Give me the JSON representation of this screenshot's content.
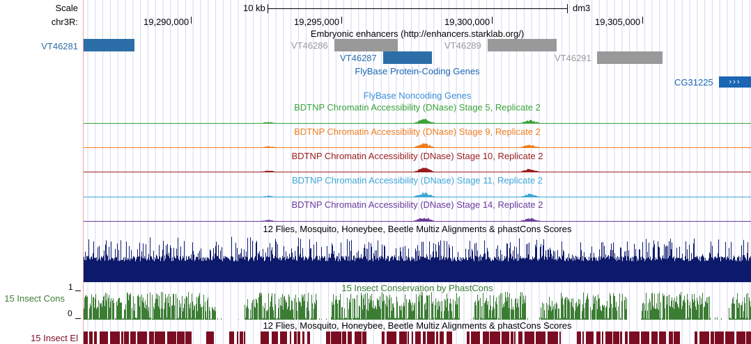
{
  "ruler": {
    "scale_label": "Scale",
    "chrom_label": "chr3R:",
    "scale_bar_text": "10 kb",
    "assembly": "dm3",
    "positions": [
      "19,290,000",
      "19,295,000",
      "19,300,000",
      "19,305,000"
    ]
  },
  "enhancers": {
    "title": "Embryonic enhancers (http://enhancers.starklab.org/)",
    "left_label": "VT46281",
    "items": [
      {
        "label": "VT46286",
        "color": "#999999"
      },
      {
        "label": "VT46287",
        "color": "#2b6ea8"
      },
      {
        "label": "VT46289",
        "color": "#999999"
      },
      {
        "label": "VT46291",
        "color": "#999999"
      }
    ]
  },
  "flybase_coding": {
    "title": "FlyBase Protein-Coding Genes",
    "gene": "CG31225",
    "strand_glyph": "›››",
    "color": "#1a66b3"
  },
  "flybase_noncoding": {
    "title": "FlyBase Noncoding Genes",
    "color": "#3c8fd9"
  },
  "dnase_tracks": [
    {
      "title": "BDTNP Chromatin Accessibility (DNase) Stage 5, Replicate 2",
      "color": "#3aa33a"
    },
    {
      "title": "BDTNP Chromatin Accessibility (DNase) Stage 9, Replicate 2",
      "color": "#f07d1e"
    },
    {
      "title": "BDTNP Chromatin Accessibility (DNase) Stage 10, Replicate 2",
      "color": "#9b1c1c"
    },
    {
      "title": "BDTNP Chromatin Accessibility (DNase) Stage 11, Replicate 2",
      "color": "#3ea7d6"
    },
    {
      "title": "BDTNP Chromatin Accessibility (DNase) Stage 14, Replicate 2",
      "color": "#6a3a9c"
    }
  ],
  "multiz": {
    "title": "12 Flies, Mosquito, Honeybee, Beetle Multiz Alignments & phastCons Scores",
    "color": "#0d1a6b"
  },
  "insect_cons": {
    "title": "15 Insect Conservation by PhastCons",
    "left_label": "15 Insect Cons",
    "max_label": "1",
    "min_label": "0",
    "color": "#3b7d33"
  },
  "insect_el": {
    "title": "12 Flies, Mosquito, Honeybee, Beetle Multiz Alignments & phastCons Scores",
    "left_label": "15 Insect El",
    "color": "#7a0d22"
  }
}
